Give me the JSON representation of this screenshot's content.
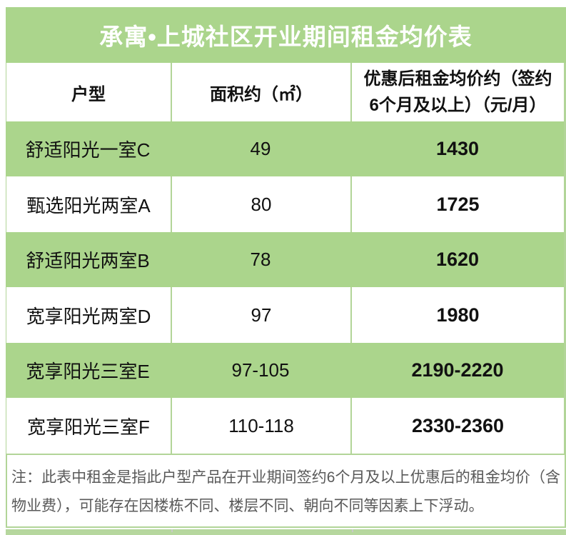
{
  "title": "承寓•上城社区开业期间租金均价表",
  "table": {
    "headers": [
      "户型",
      "面积约（㎡）",
      "优惠后租金均价约（签约6个月及以上）（元/月）"
    ],
    "rows": [
      {
        "type": "舒适阳光一室C",
        "area": "49",
        "price": "1430"
      },
      {
        "type": "甄选阳光两室A",
        "area": "80",
        "price": "1725"
      },
      {
        "type": "舒适阳光两室B",
        "area": "78",
        "price": "1620"
      },
      {
        "type": "宽享阳光两室D",
        "area": "97",
        "price": "1980"
      },
      {
        "type": "宽享阳光三室E",
        "area": "97-105",
        "price": "2190-2220"
      },
      {
        "type": "宽享阳光三室F",
        "area": "110-118",
        "price": "2330-2360"
      }
    ]
  },
  "note": "注：此表中租金是指此户型产品在开业期间签约6个月及以上优惠后的租金均价（含物业费），可能存在因楼栋不同、楼层不同、朝向不同等因素上下浮动。",
  "colors": {
    "green": "#abd58c",
    "line": "#b2d598",
    "strip": "#b6d79e",
    "ink": "#111111",
    "note-ink": "#595959",
    "paper": "#ffffff"
  }
}
